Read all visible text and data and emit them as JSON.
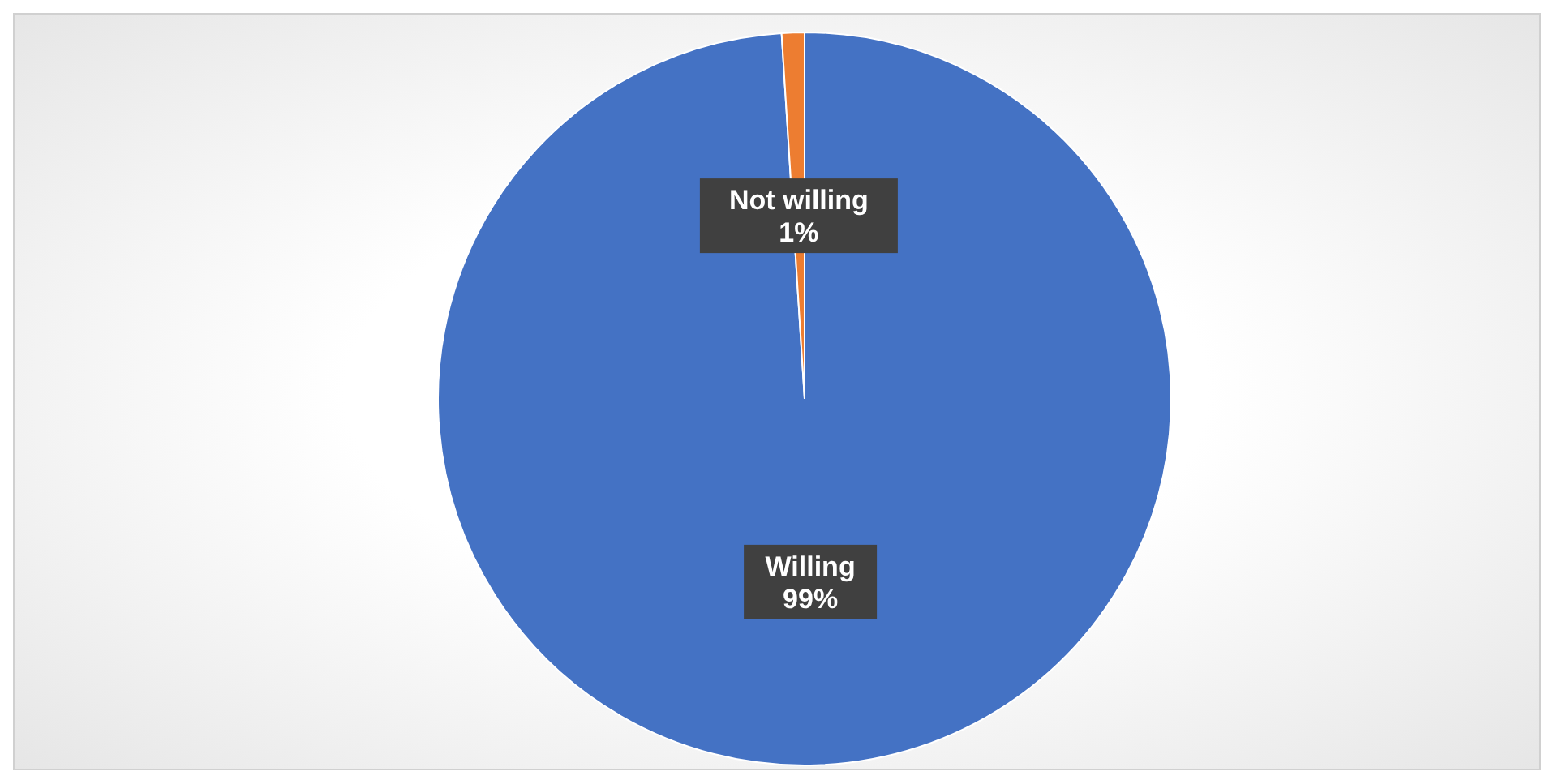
{
  "chart_data": {
    "type": "pie",
    "categories": [
      "Willing",
      "Not willing"
    ],
    "values": [
      99,
      1
    ],
    "colors": [
      "#4472c4",
      "#ed7d31"
    ],
    "value_labels": [
      "99%",
      "1%"
    ]
  }
}
